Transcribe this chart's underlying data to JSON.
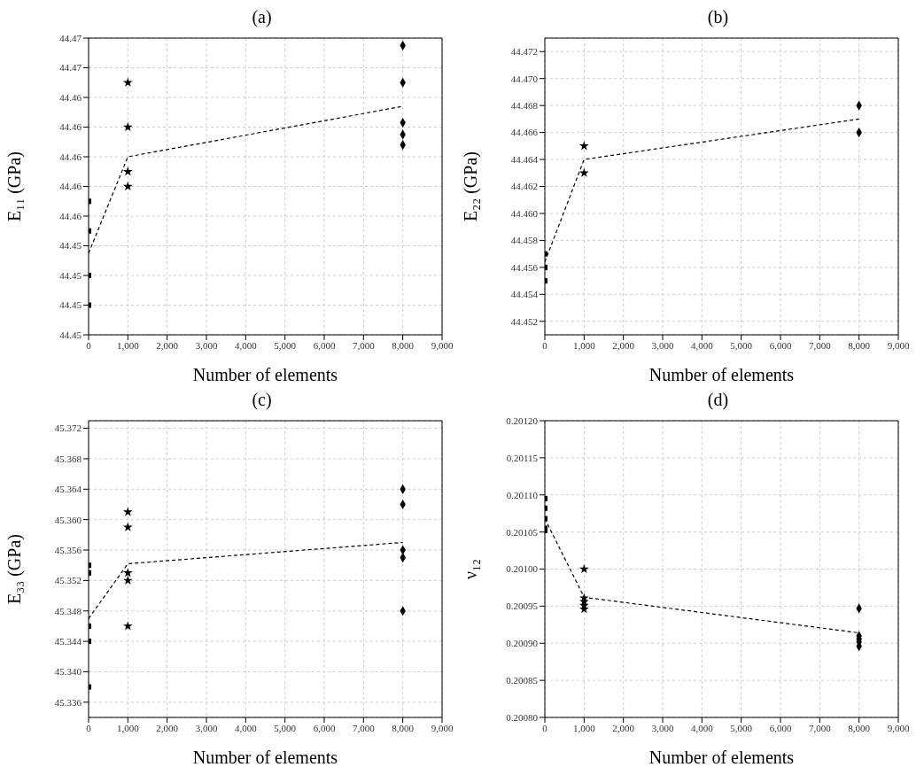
{
  "chart_data": [
    {
      "type": "scatter",
      "title": "(a)",
      "xlabel": "Number of elements",
      "ylabel": "E₁₁ (GPa)",
      "grid": true,
      "xlim": [
        0,
        9000
      ],
      "xticks": [
        {
          "value": 0,
          "label": "0"
        },
        {
          "value": 1000,
          "label": "1,000"
        },
        {
          "value": 2000,
          "label": "2,000"
        },
        {
          "value": 3000,
          "label": "3,000"
        },
        {
          "value": 4000,
          "label": "4,000"
        },
        {
          "value": 5000,
          "label": "5,000"
        },
        {
          "value": 6000,
          "label": "6,000"
        },
        {
          "value": 7000,
          "label": "7,000"
        },
        {
          "value": 8000,
          "label": "8,000"
        },
        {
          "value": 9000,
          "label": "9,000"
        }
      ],
      "ylim": [
        44.447,
        44.467
      ],
      "yticks": [
        {
          "value": 44.447,
          "label": "44.45"
        },
        {
          "value": 44.449,
          "label": "44.45"
        },
        {
          "value": 44.451,
          "label": "44.45"
        },
        {
          "value": 44.453,
          "label": "44.45"
        },
        {
          "value": 44.455,
          "label": "44.46"
        },
        {
          "value": 44.457,
          "label": "44.46"
        },
        {
          "value": 44.459,
          "label": "44.46"
        },
        {
          "value": 44.461,
          "label": "44.46"
        },
        {
          "value": 44.463,
          "label": "44.46"
        },
        {
          "value": 44.465,
          "label": "44.47"
        },
        {
          "value": 44.467,
          "label": "44.47"
        }
      ],
      "series": [
        {
          "marker": "square",
          "color": "#000000",
          "x": [
            0,
            0,
            0,
            0
          ],
          "values": [
            44.456,
            44.454,
            44.451,
            44.449
          ]
        },
        {
          "marker": "star",
          "color": "#000000",
          "x": [
            1000,
            1000,
            1000,
            1000
          ],
          "values": [
            44.464,
            44.461,
            44.458,
            44.457
          ]
        },
        {
          "marker": "diamond",
          "color": "#000000",
          "x": [
            8000,
            8000,
            8000,
            8000,
            8000
          ],
          "values": [
            44.4665,
            44.464,
            44.4613,
            44.4605,
            44.4598
          ]
        },
        {
          "type": "line",
          "marker": "none",
          "line_style": "dashed",
          "color": "#000000",
          "x": [
            0,
            1000,
            8000
          ],
          "values": [
            44.4525,
            44.459,
            44.4624
          ]
        }
      ]
    },
    {
      "type": "scatter",
      "title": "(b)",
      "xlabel": "Number of elements",
      "ylabel": "E₂₂ (GPa)",
      "grid": true,
      "xlim": [
        0,
        9000
      ],
      "xticks": [
        {
          "value": 0,
          "label": "0"
        },
        {
          "value": 1000,
          "label": "1,000"
        },
        {
          "value": 2000,
          "label": "2,000"
        },
        {
          "value": 3000,
          "label": "3,000"
        },
        {
          "value": 4000,
          "label": "4,000"
        },
        {
          "value": 5000,
          "label": "5,000"
        },
        {
          "value": 6000,
          "label": "6,000"
        },
        {
          "value": 7000,
          "label": "7,000"
        },
        {
          "value": 8000,
          "label": "8,000"
        },
        {
          "value": 9000,
          "label": "9,000"
        }
      ],
      "ylim": [
        44.451,
        44.473
      ],
      "yticks": [
        44.452,
        44.454,
        44.456,
        44.458,
        {
          "value": 44.46,
          "label": "44.460"
        },
        44.462,
        44.464,
        44.466,
        44.468,
        {
          "value": 44.47,
          "label": "44.470"
        },
        44.472
      ],
      "series": [
        {
          "marker": "square",
          "color": "#000000",
          "x": [
            0,
            0,
            0
          ],
          "values": [
            44.457,
            44.456,
            44.455
          ]
        },
        {
          "marker": "star",
          "color": "#000000",
          "x": [
            1000,
            1000
          ],
          "values": [
            44.465,
            44.463
          ]
        },
        {
          "marker": "diamond",
          "color": "#000000",
          "x": [
            8000,
            8000
          ],
          "values": [
            44.468,
            44.466
          ]
        },
        {
          "type": "line",
          "marker": "none",
          "line_style": "dashed",
          "color": "#000000",
          "x": [
            0,
            1000,
            8000
          ],
          "values": [
            44.4564,
            44.464,
            44.467
          ]
        }
      ]
    },
    {
      "type": "scatter",
      "title": "(c)",
      "xlabel": "Number of elements",
      "ylabel": "E₃₃ (GPa)",
      "grid": true,
      "xlim": [
        0,
        9000
      ],
      "xticks": [
        {
          "value": 0,
          "label": "0"
        },
        {
          "value": 1000,
          "label": "1,000"
        },
        {
          "value": 2000,
          "label": "2,000"
        },
        {
          "value": 3000,
          "label": "3,000"
        },
        {
          "value": 4000,
          "label": "4,000"
        },
        {
          "value": 5000,
          "label": "5,000"
        },
        {
          "value": 6000,
          "label": "6,000"
        },
        {
          "value": 7000,
          "label": "7,000"
        },
        {
          "value": 8000,
          "label": "8,000"
        },
        {
          "value": 9000,
          "label": "9,000"
        }
      ],
      "ylim": [
        45.334,
        45.373
      ],
      "yticks": [
        45.336,
        {
          "value": 45.34,
          "label": "45.340"
        },
        45.344,
        45.348,
        45.352,
        45.356,
        {
          "value": 45.36,
          "label": "45.360"
        },
        45.364,
        45.368,
        45.372
      ],
      "series": [
        {
          "marker": "square",
          "color": "#000000",
          "x": [
            0,
            0,
            0,
            0,
            0
          ],
          "values": [
            45.354,
            45.353,
            45.346,
            45.344,
            45.338
          ]
        },
        {
          "marker": "star",
          "color": "#000000",
          "x": [
            1000,
            1000,
            1000,
            1000,
            1000
          ],
          "values": [
            45.361,
            45.359,
            45.353,
            45.352,
            45.346
          ]
        },
        {
          "marker": "diamond",
          "color": "#000000",
          "x": [
            8000,
            8000,
            8000,
            8000,
            8000
          ],
          "values": [
            45.364,
            45.362,
            45.356,
            45.355,
            45.348
          ]
        },
        {
          "type": "line",
          "marker": "none",
          "line_style": "dashed",
          "color": "#000000",
          "x": [
            0,
            1000,
            8000
          ],
          "values": [
            45.347,
            45.3542,
            45.357
          ]
        }
      ]
    },
    {
      "type": "scatter",
      "title": "(d)",
      "xlabel": "Number of elements",
      "ylabel": "ν₁₂",
      "grid": true,
      "xlim": [
        0,
        9000
      ],
      "xticks": [
        {
          "value": 0,
          "label": "0"
        },
        {
          "value": 1000,
          "label": "1,000"
        },
        {
          "value": 2000,
          "label": "2,000"
        },
        {
          "value": 3000,
          "label": "3,000"
        },
        {
          "value": 4000,
          "label": "4,000"
        },
        {
          "value": 5000,
          "label": "5,000"
        },
        {
          "value": 6000,
          "label": "6,000"
        },
        {
          "value": 7000,
          "label": "7,000"
        },
        {
          "value": 8000,
          "label": "8,000"
        },
        {
          "value": 9000,
          "label": "9,000"
        }
      ],
      "ylim": [
        0.2008,
        0.2012
      ],
      "yticks": [
        {
          "value": 0.2008,
          "label": "0.20080"
        },
        {
          "value": 0.20085,
          "label": "0.20085"
        },
        {
          "value": 0.2009,
          "label": "0.20090"
        },
        {
          "value": 0.20095,
          "label": "0.20095"
        },
        {
          "value": 0.201,
          "label": "0.20100"
        },
        {
          "value": 0.20105,
          "label": "0.20105"
        },
        {
          "value": 0.2011,
          "label": "0.20110"
        },
        {
          "value": 0.20115,
          "label": "0.20115"
        },
        {
          "value": 0.2012,
          "label": "0.20120"
        }
      ],
      "series": [
        {
          "marker": "square",
          "color": "#000000",
          "x": [
            0,
            0,
            0,
            0,
            0
          ],
          "values": [
            0.201095,
            0.201082,
            0.201068,
            0.201055,
            0.201052
          ]
        },
        {
          "marker": "star",
          "color": "#000000",
          "x": [
            1000,
            1000,
            1000,
            1000,
            1000
          ],
          "values": [
            0.201,
            0.200961,
            0.200956,
            0.200951,
            0.200946
          ]
        },
        {
          "marker": "diamond",
          "color": "#000000",
          "x": [
            8000,
            8000,
            8000,
            8000,
            8000
          ],
          "values": [
            0.200947,
            0.20091,
            0.200906,
            0.200902,
            0.200896
          ]
        },
        {
          "type": "line",
          "marker": "none",
          "line_style": "dashed",
          "color": "#000000",
          "x": [
            0,
            1000,
            8000
          ],
          "values": [
            0.201068,
            0.200962,
            0.200914
          ]
        }
      ]
    }
  ]
}
